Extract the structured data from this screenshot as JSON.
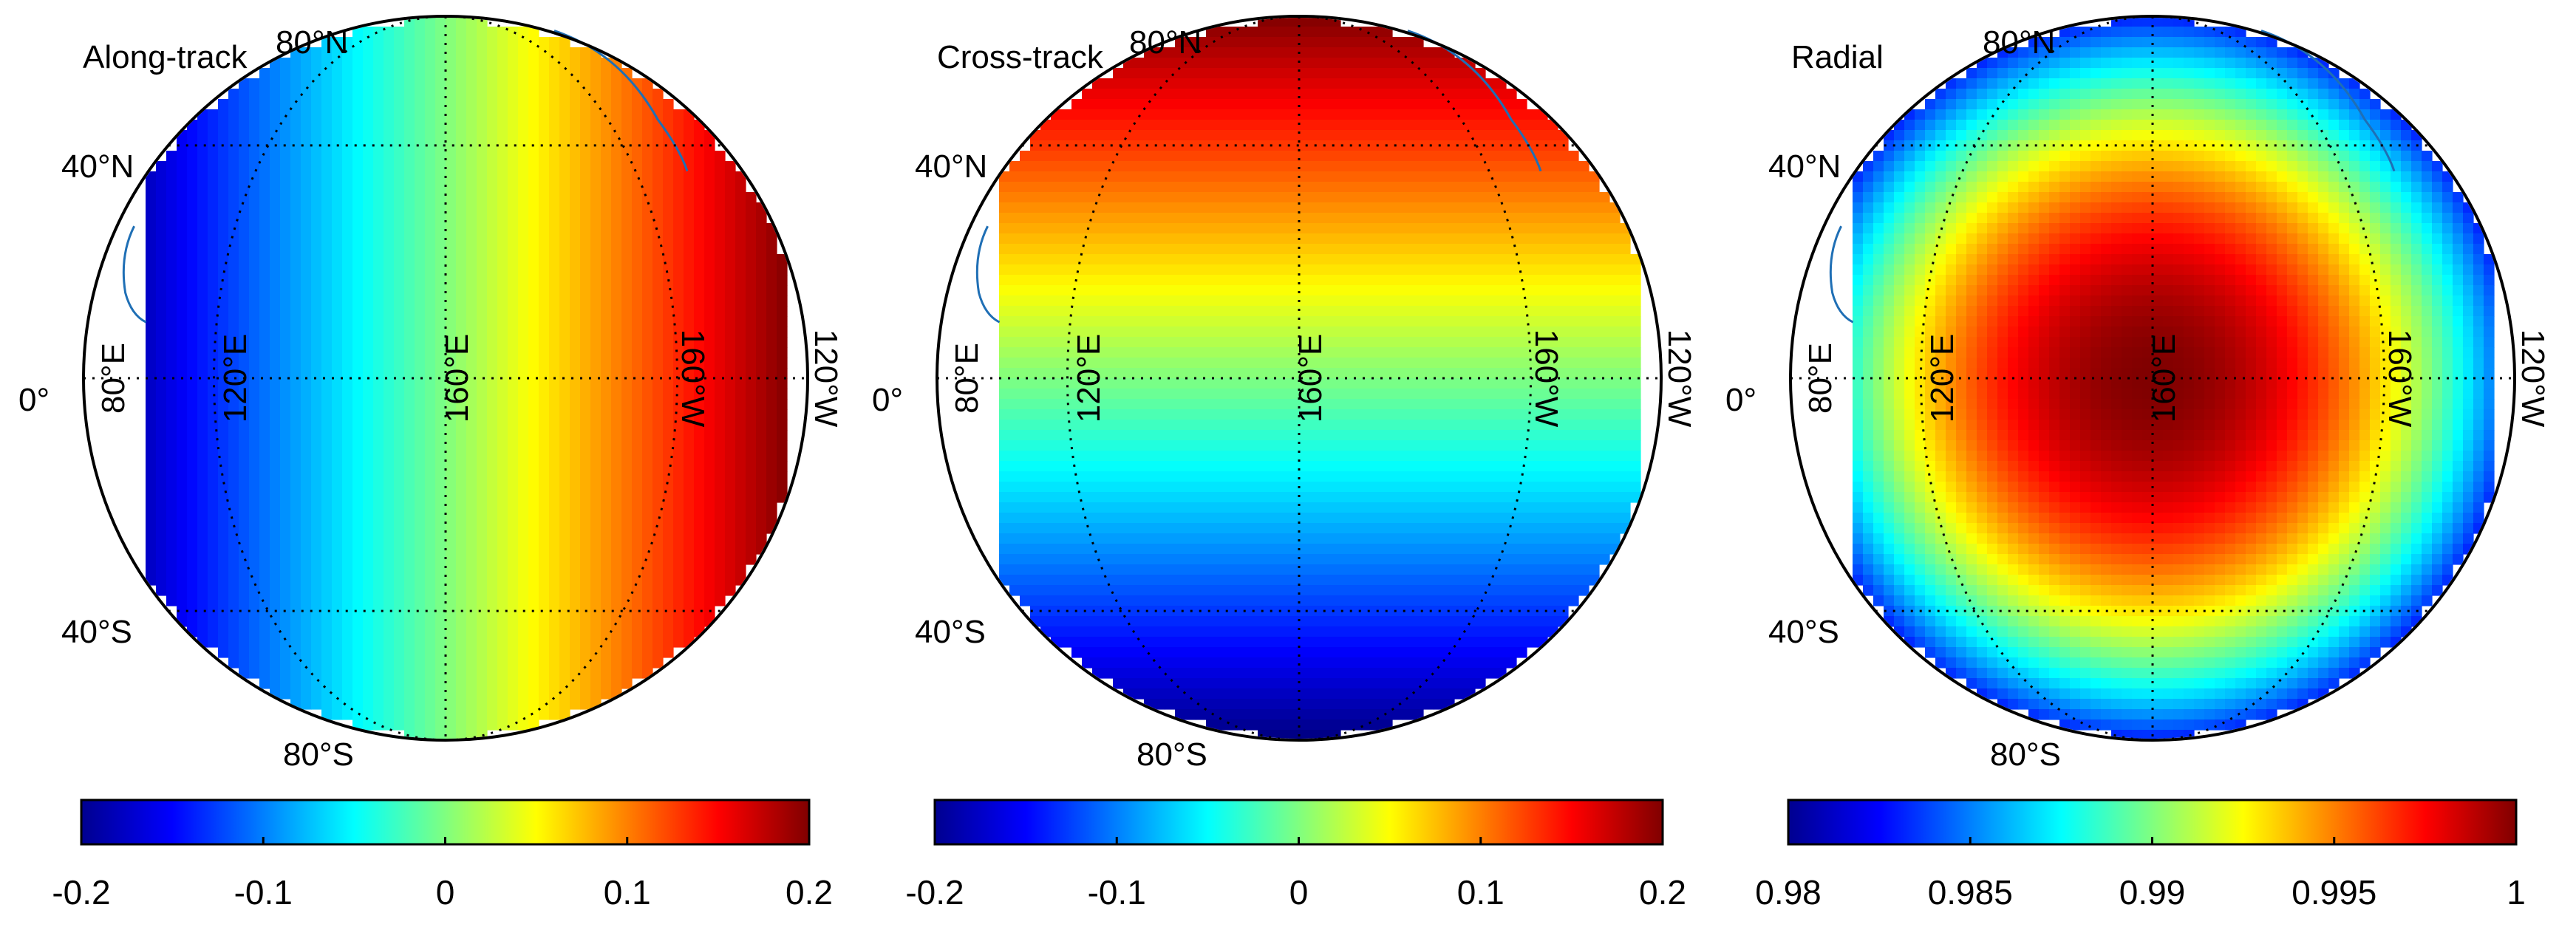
{
  "chart_data": [
    {
      "type": "heatmap",
      "title": "Along-track",
      "field": "along-track",
      "lat_labels": {
        "n80": "80°N",
        "n40": "40°N",
        "eq": "0°",
        "s40": "40°S",
        "s80": "80°S"
      },
      "lon_labels": {
        "e80": "80°E",
        "e120": "120°E",
        "e160": "160°E",
        "w160": "160°W",
        "w120": "120°W"
      },
      "colorbar": {
        "min": -0.2,
        "max": 0.2,
        "ticks": [
          -0.2,
          -0.1,
          0,
          0.1,
          0.2
        ],
        "tick_labels": [
          "-0.2",
          "-0.1",
          "0",
          "0.1",
          "0.2"
        ],
        "colormap": "jet"
      }
    },
    {
      "type": "heatmap",
      "title": "Cross-track",
      "field": "cross-track",
      "lat_labels": {
        "n80": "80°N",
        "n40": "40°N",
        "eq": "0°",
        "s40": "40°S",
        "s80": "80°S"
      },
      "lon_labels": {
        "e80": "80°E",
        "e120": "120°E",
        "e160": "160°E",
        "w160": "160°W",
        "w120": "120°W"
      },
      "colorbar": {
        "min": -0.2,
        "max": 0.2,
        "ticks": [
          -0.2,
          -0.1,
          0,
          0.1,
          0.2
        ],
        "tick_labels": [
          "-0.2",
          "-0.1",
          "0",
          "0.1",
          "0.2"
        ],
        "colormap": "jet"
      }
    },
    {
      "type": "heatmap",
      "title": "Radial",
      "field": "radial",
      "lat_labels": {
        "n80": "80°N",
        "n40": "40°N",
        "eq": "0°",
        "s40": "40°S",
        "s80": "80°S"
      },
      "lon_labels": {
        "e80": "80°E",
        "e120": "120°E",
        "e160": "160°E",
        "w160": "160°W",
        "w120": "120°W"
      },
      "colorbar": {
        "min": 0.98,
        "max": 1,
        "ticks": [
          0.98,
          0.985,
          0.99,
          0.995,
          1
        ],
        "tick_labels": [
          "0.98",
          "0.985",
          "0.99",
          "0.995",
          "1"
        ],
        "colormap": "jet"
      }
    }
  ],
  "colors": {
    "coastline": "#1f6fb5",
    "background": "#ffffff",
    "frame": "#000000"
  }
}
